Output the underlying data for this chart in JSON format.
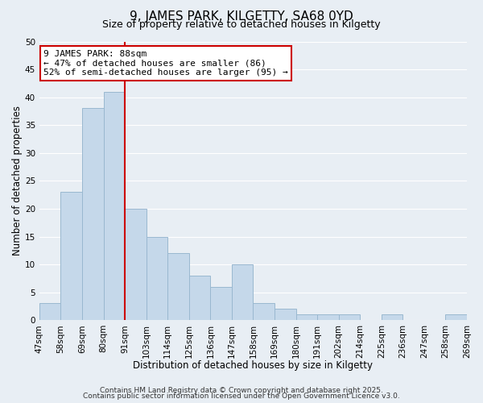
{
  "title": "9, JAMES PARK, KILGETTY, SA68 0YD",
  "subtitle": "Size of property relative to detached houses in Kilgetty",
  "xlabel": "Distribution of detached houses by size in Kilgetty",
  "ylabel": "Number of detached properties",
  "bar_values": [
    3,
    23,
    38,
    41,
    20,
    15,
    12,
    8,
    6,
    10,
    3,
    2,
    1,
    1,
    1,
    0,
    1,
    0,
    0,
    1
  ],
  "bar_labels": [
    "47sqm",
    "58sqm",
    "69sqm",
    "80sqm",
    "91sqm",
    "103sqm",
    "114sqm",
    "125sqm",
    "136sqm",
    "147sqm",
    "158sqm",
    "169sqm",
    "180sqm",
    "191sqm",
    "202sqm",
    "214sqm",
    "225sqm",
    "236sqm",
    "247sqm",
    "258sqm",
    "269sqm"
  ],
  "bar_color": "#c5d8ea",
  "bar_edge_color": "#9ab8d0",
  "ylim": [
    0,
    50
  ],
  "yticks": [
    0,
    5,
    10,
    15,
    20,
    25,
    30,
    35,
    40,
    45,
    50
  ],
  "red_line_x": 4,
  "annotation_line1": "9 JAMES PARK: 88sqm",
  "annotation_line2": "← 47% of detached houses are smaller (86)",
  "annotation_line3": "52% of semi-detached houses are larger (95) →",
  "annotation_box_facecolor": "#ffffff",
  "annotation_box_edgecolor": "#cc0000",
  "red_line_color": "#cc0000",
  "footer_line1": "Contains HM Land Registry data © Crown copyright and database right 2025.",
  "footer_line2": "Contains public sector information licensed under the Open Government Licence v3.0.",
  "background_color": "#e8eef4",
  "grid_color": "#ffffff",
  "title_fontsize": 11,
  "subtitle_fontsize": 9,
  "axis_label_fontsize": 8.5,
  "tick_fontsize": 7.5,
  "annotation_fontsize": 8,
  "footer_fontsize": 6.5
}
